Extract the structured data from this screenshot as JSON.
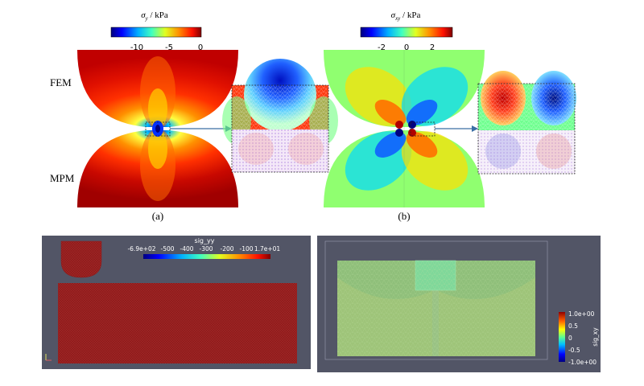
{
  "panel_a": {
    "colorbar_title_symbol": "σ",
    "colorbar_title_sub": "y",
    "colorbar_title_unit": " / kPa",
    "ticks": [
      "-10",
      "-5",
      "0"
    ],
    "label_top": "FEM",
    "label_bottom": "MPM",
    "caption": "(a)"
  },
  "panel_b": {
    "colorbar_title_symbol": "σ",
    "colorbar_title_sub": "xy",
    "colorbar_title_unit": " / kPa",
    "ticks": [
      "-2",
      "0",
      "2"
    ],
    "caption": "(b)"
  },
  "screenshot_left": {
    "colorbar_title": "sig_yy",
    "ticks": [
      "-6.9e+02",
      "-500",
      "-400",
      "-300",
      "-200",
      "-100",
      "1.7e+01"
    ]
  },
  "screenshot_right": {
    "colorbar_title": "sig_xy",
    "ticks": [
      "1.0e+00",
      "0.5",
      "0",
      "-0.5",
      "-1.0e+00"
    ]
  },
  "colors": {
    "jet": [
      "#00007f",
      "#0000ff",
      "#0080ff",
      "#00ffff",
      "#80ff80",
      "#ffff00",
      "#ff8000",
      "#ff0000",
      "#7f0000"
    ],
    "paraview_bg": "#525566",
    "accent_arrow": "#3a6ea5"
  }
}
